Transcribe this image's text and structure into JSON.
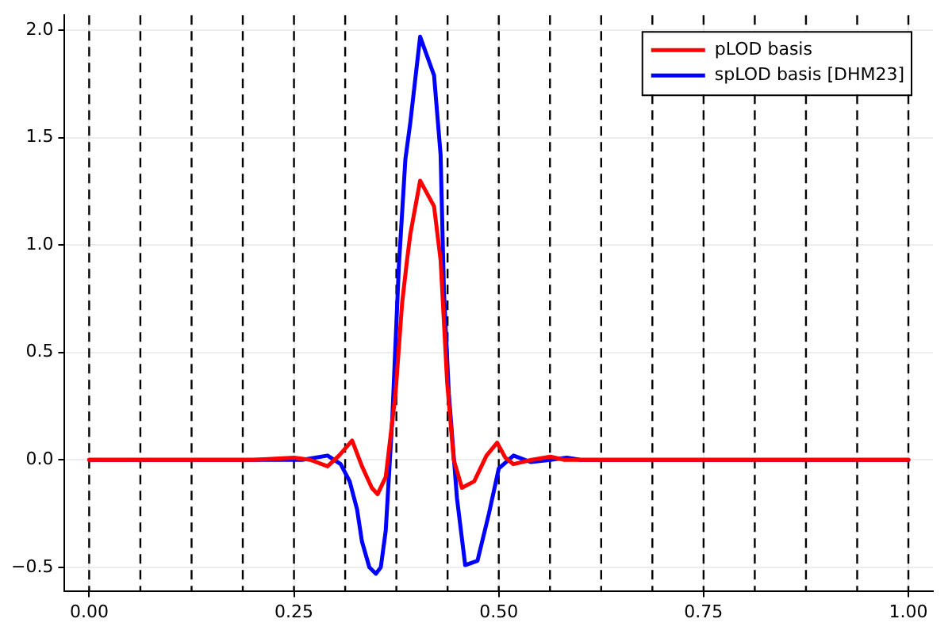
{
  "chart_data": {
    "type": "line",
    "xlim": [
      -0.03,
      1.03
    ],
    "ylim": [
      -0.61,
      2.07
    ],
    "xticks": [
      {
        "value": 0,
        "label": "0.00"
      },
      {
        "value": 0.25,
        "label": "0.25"
      },
      {
        "value": 0.5,
        "label": "0.50"
      },
      {
        "value": 0.75,
        "label": "0.75"
      },
      {
        "value": 1,
        "label": "1.00"
      }
    ],
    "yticks": [
      {
        "value": -0.5,
        "label": "−0.5"
      },
      {
        "value": 0,
        "label": "0.0"
      },
      {
        "value": 0.5,
        "label": "0.5"
      },
      {
        "value": 1,
        "label": "1.0"
      },
      {
        "value": 1.5,
        "label": "1.5"
      },
      {
        "value": 2,
        "label": "2.0"
      }
    ],
    "grid": true,
    "legend": "top right",
    "marker": "none",
    "line_style": "solid",
    "series": [
      {
        "name": "pLOD basis",
        "color": "#ff0000",
        "x": [
          0,
          0.2,
          0.25,
          0.27,
          0.291,
          0.305,
          0.321,
          0.333,
          0.345,
          0.352,
          0.362,
          0.374,
          0.382,
          0.388,
          0.392,
          0.404,
          0.421,
          0.429,
          0.437,
          0.445,
          0.455,
          0.47,
          0.485,
          0.498,
          0.508,
          0.518,
          0.54,
          0.563,
          0.58,
          1
        ],
        "values": [
          0,
          0,
          0.01,
          0,
          -0.03,
          0.02,
          0.09,
          -0.03,
          -0.13,
          -0.16,
          -0.08,
          0.31,
          0.73,
          0.93,
          1.05,
          1.3,
          1.18,
          0.93,
          0.36,
          0.0,
          -0.13,
          -0.1,
          0.02,
          0.08,
          0.01,
          -0.02,
          0,
          0.015,
          0,
          0
        ]
      },
      {
        "name": "spLOD basis [DHM23]",
        "color": "#0000ff",
        "x": [
          0,
          0.2,
          0.26,
          0.291,
          0.307,
          0.318,
          0.327,
          0.333,
          0.342,
          0.35,
          0.356,
          0.362,
          0.37,
          0.378,
          0.386,
          0.392,
          0.404,
          0.421,
          0.429,
          0.433,
          0.439,
          0.449,
          0.459,
          0.474,
          0.488,
          0.5,
          0.518,
          0.539,
          0.563,
          0.583,
          0.6,
          1
        ],
        "values": [
          0,
          0,
          0,
          0.02,
          -0.02,
          -0.1,
          -0.23,
          -0.38,
          -0.5,
          -0.53,
          -0.5,
          -0.33,
          0.19,
          0.9,
          1.4,
          1.57,
          1.97,
          1.79,
          1.42,
          0.79,
          0.31,
          -0.18,
          -0.49,
          -0.47,
          -0.25,
          -0.04,
          0.02,
          -0.01,
          0,
          0.01,
          0,
          0
        ]
      }
    ],
    "ref_lines": [
      {
        "axis": "x",
        "value": 0,
        "color": "#000000",
        "line_style": "dashed"
      },
      {
        "axis": "x",
        "value": 0.0625,
        "color": "#000000",
        "line_style": "dashed"
      },
      {
        "axis": "x",
        "value": 0.125,
        "color": "#000000",
        "line_style": "dashed"
      },
      {
        "axis": "x",
        "value": 0.1875,
        "color": "#000000",
        "line_style": "dashed"
      },
      {
        "axis": "x",
        "value": 0.25,
        "color": "#000000",
        "line_style": "dashed"
      },
      {
        "axis": "x",
        "value": 0.3125,
        "color": "#000000",
        "line_style": "dashed"
      },
      {
        "axis": "x",
        "value": 0.375,
        "color": "#000000",
        "line_style": "dashed"
      },
      {
        "axis": "x",
        "value": 0.4375,
        "color": "#000000",
        "line_style": "dashed"
      },
      {
        "axis": "x",
        "value": 0.5,
        "color": "#000000",
        "line_style": "dashed"
      },
      {
        "axis": "x",
        "value": 0.5625,
        "color": "#000000",
        "line_style": "dashed"
      },
      {
        "axis": "x",
        "value": 0.625,
        "color": "#000000",
        "line_style": "dashed"
      },
      {
        "axis": "x",
        "value": 0.6875,
        "color": "#000000",
        "line_style": "dashed"
      },
      {
        "axis": "x",
        "value": 0.75,
        "color": "#000000",
        "line_style": "dashed"
      },
      {
        "axis": "x",
        "value": 0.8125,
        "color": "#000000",
        "line_style": "dashed"
      },
      {
        "axis": "x",
        "value": 0.875,
        "color": "#000000",
        "line_style": "dashed"
      },
      {
        "axis": "x",
        "value": 0.9375,
        "color": "#000000",
        "line_style": "dashed"
      },
      {
        "axis": "x",
        "value": 1,
        "color": "#000000",
        "line_style": "dashed"
      }
    ]
  }
}
